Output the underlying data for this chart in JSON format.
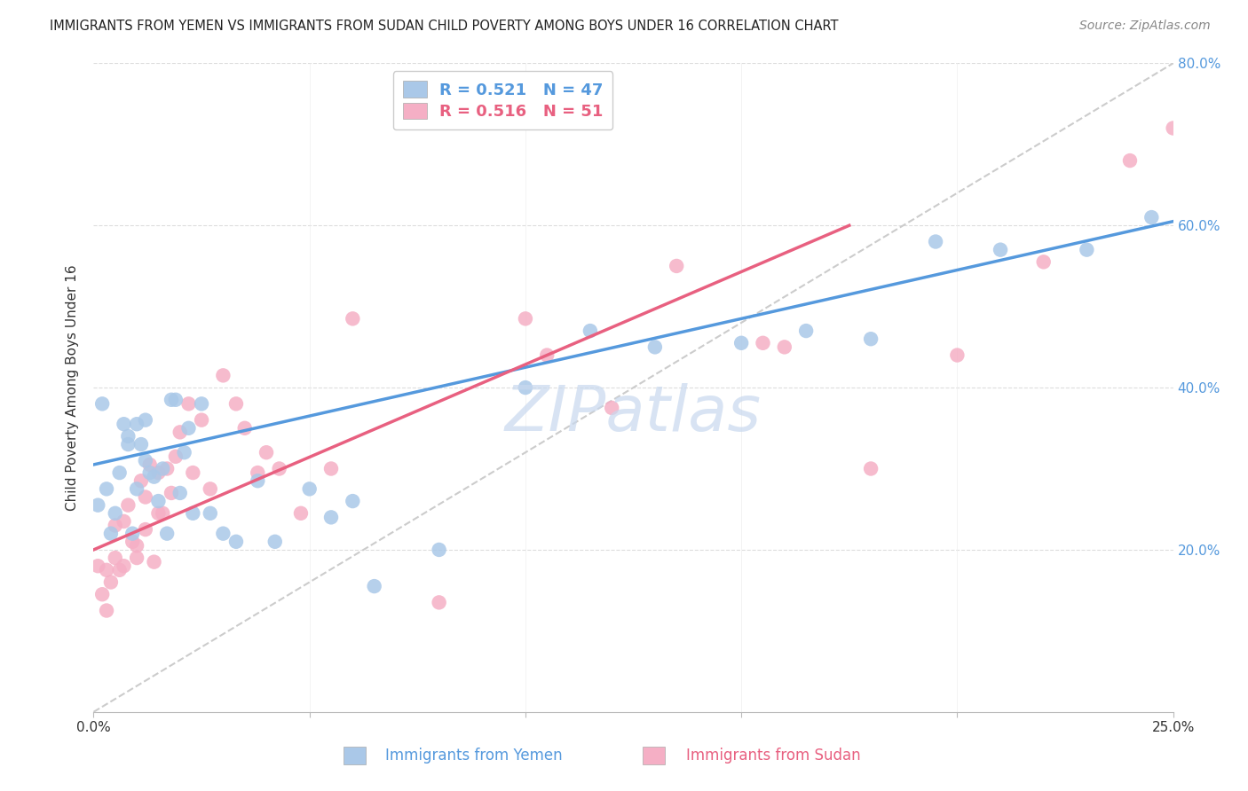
{
  "title": "IMMIGRANTS FROM YEMEN VS IMMIGRANTS FROM SUDAN CHILD POVERTY AMONG BOYS UNDER 16 CORRELATION CHART",
  "source": "Source: ZipAtlas.com",
  "ylabel": "Child Poverty Among Boys Under 16",
  "xlim": [
    0.0,
    0.25
  ],
  "ylim": [
    0.0,
    0.8
  ],
  "xtick_positions": [
    0.0,
    0.05,
    0.1,
    0.15,
    0.2,
    0.25
  ],
  "xtick_labels": [
    "0.0%",
    "",
    "",
    "",
    "",
    "25.0%"
  ],
  "ytick_positions": [
    0.0,
    0.2,
    0.4,
    0.6,
    0.8
  ],
  "ytick_labels": [
    "",
    "20.0%",
    "40.0%",
    "60.0%",
    "80.0%"
  ],
  "yemen_R": 0.521,
  "yemen_N": 47,
  "sudan_R": 0.516,
  "sudan_N": 51,
  "yemen_dot_color": "#aac8e8",
  "sudan_dot_color": "#f5afc5",
  "yemen_line_color": "#5599dd",
  "sudan_line_color": "#e86080",
  "diag_line_color": "#cccccc",
  "right_axis_color": "#5599dd",
  "legend_label_yemen": "Immigrants from Yemen",
  "legend_label_sudan": "Immigrants from Sudan",
  "watermark": "ZIPatlas",
  "watermark_color": "#c8d8ee",
  "background_color": "#ffffff",
  "title_fontsize": 10.5,
  "axis_label_fontsize": 11,
  "tick_fontsize": 11,
  "legend_fontsize": 13,
  "source_fontsize": 10,
  "yemen_x": [
    0.001,
    0.002,
    0.003,
    0.004,
    0.005,
    0.006,
    0.007,
    0.008,
    0.008,
    0.009,
    0.01,
    0.01,
    0.011,
    0.012,
    0.012,
    0.013,
    0.014,
    0.015,
    0.016,
    0.017,
    0.018,
    0.019,
    0.02,
    0.021,
    0.022,
    0.023,
    0.025,
    0.027,
    0.03,
    0.033,
    0.038,
    0.042,
    0.05,
    0.055,
    0.06,
    0.065,
    0.08,
    0.1,
    0.115,
    0.13,
    0.15,
    0.165,
    0.18,
    0.195,
    0.21,
    0.23,
    0.245
  ],
  "yemen_y": [
    0.255,
    0.38,
    0.275,
    0.22,
    0.245,
    0.295,
    0.355,
    0.34,
    0.33,
    0.22,
    0.275,
    0.355,
    0.33,
    0.31,
    0.36,
    0.295,
    0.29,
    0.26,
    0.3,
    0.22,
    0.385,
    0.385,
    0.27,
    0.32,
    0.35,
    0.245,
    0.38,
    0.245,
    0.22,
    0.21,
    0.285,
    0.21,
    0.275,
    0.24,
    0.26,
    0.155,
    0.2,
    0.4,
    0.47,
    0.45,
    0.455,
    0.47,
    0.46,
    0.58,
    0.57,
    0.57,
    0.61
  ],
  "sudan_x": [
    0.001,
    0.002,
    0.003,
    0.003,
    0.004,
    0.005,
    0.005,
    0.006,
    0.007,
    0.007,
    0.008,
    0.009,
    0.01,
    0.01,
    0.011,
    0.012,
    0.012,
    0.013,
    0.014,
    0.015,
    0.015,
    0.016,
    0.017,
    0.018,
    0.019,
    0.02,
    0.022,
    0.023,
    0.025,
    0.027,
    0.03,
    0.033,
    0.035,
    0.038,
    0.04,
    0.043,
    0.048,
    0.055,
    0.06,
    0.08,
    0.1,
    0.105,
    0.12,
    0.135,
    0.155,
    0.16,
    0.18,
    0.2,
    0.22,
    0.24,
    0.25
  ],
  "sudan_y": [
    0.18,
    0.145,
    0.125,
    0.175,
    0.16,
    0.19,
    0.23,
    0.175,
    0.235,
    0.18,
    0.255,
    0.21,
    0.205,
    0.19,
    0.285,
    0.265,
    0.225,
    0.305,
    0.185,
    0.295,
    0.245,
    0.245,
    0.3,
    0.27,
    0.315,
    0.345,
    0.38,
    0.295,
    0.36,
    0.275,
    0.415,
    0.38,
    0.35,
    0.295,
    0.32,
    0.3,
    0.245,
    0.3,
    0.485,
    0.135,
    0.485,
    0.44,
    0.375,
    0.55,
    0.455,
    0.45,
    0.3,
    0.44,
    0.555,
    0.68,
    0.72
  ],
  "yemen_line": {
    "x0": 0.0,
    "y0": 0.305,
    "x1": 0.25,
    "y1": 0.605
  },
  "sudan_line": {
    "x0": 0.0,
    "y0": 0.2,
    "x1": 0.175,
    "y1": 0.6
  }
}
